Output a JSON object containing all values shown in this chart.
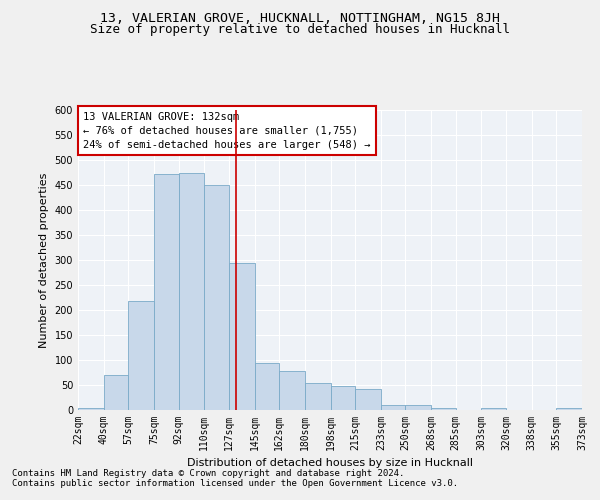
{
  "title1": "13, VALERIAN GROVE, HUCKNALL, NOTTINGHAM, NG15 8JH",
  "title2": "Size of property relative to detached houses in Hucknall",
  "xlabel": "Distribution of detached houses by size in Hucknall",
  "ylabel": "Number of detached properties",
  "footer1": "Contains HM Land Registry data © Crown copyright and database right 2024.",
  "footer2": "Contains public sector information licensed under the Open Government Licence v3.0.",
  "annotation_title": "13 VALERIAN GROVE: 132sqm",
  "annotation_line1": "← 76% of detached houses are smaller (1,755)",
  "annotation_line2": "24% of semi-detached houses are larger (548) →",
  "property_size": 132,
  "bin_edges": [
    22,
    40,
    57,
    75,
    92,
    110,
    127,
    145,
    162,
    180,
    198,
    215,
    233,
    250,
    268,
    285,
    303,
    320,
    338,
    355,
    373
  ],
  "bin_counts": [
    5,
    70,
    218,
    472,
    475,
    450,
    295,
    95,
    78,
    55,
    48,
    43,
    10,
    10,
    5,
    0,
    5,
    0,
    0,
    5
  ],
  "bar_color": "#c8d8ea",
  "bar_edgecolor": "#7aaac8",
  "vline_color": "#cc0000",
  "vline_x": 132,
  "annotation_box_color": "#cc0000",
  "annotation_bg": "#ffffff",
  "ylim": [
    0,
    600
  ],
  "yticks": [
    0,
    50,
    100,
    150,
    200,
    250,
    300,
    350,
    400,
    450,
    500,
    550,
    600
  ],
  "bg_color": "#eef2f7",
  "grid_color": "#ffffff",
  "fig_bg": "#f0f0f0",
  "title1_fontsize": 9.5,
  "title2_fontsize": 9,
  "axis_label_fontsize": 8,
  "tick_fontsize": 7,
  "annotation_fontsize": 7.5,
  "footer_fontsize": 6.5
}
